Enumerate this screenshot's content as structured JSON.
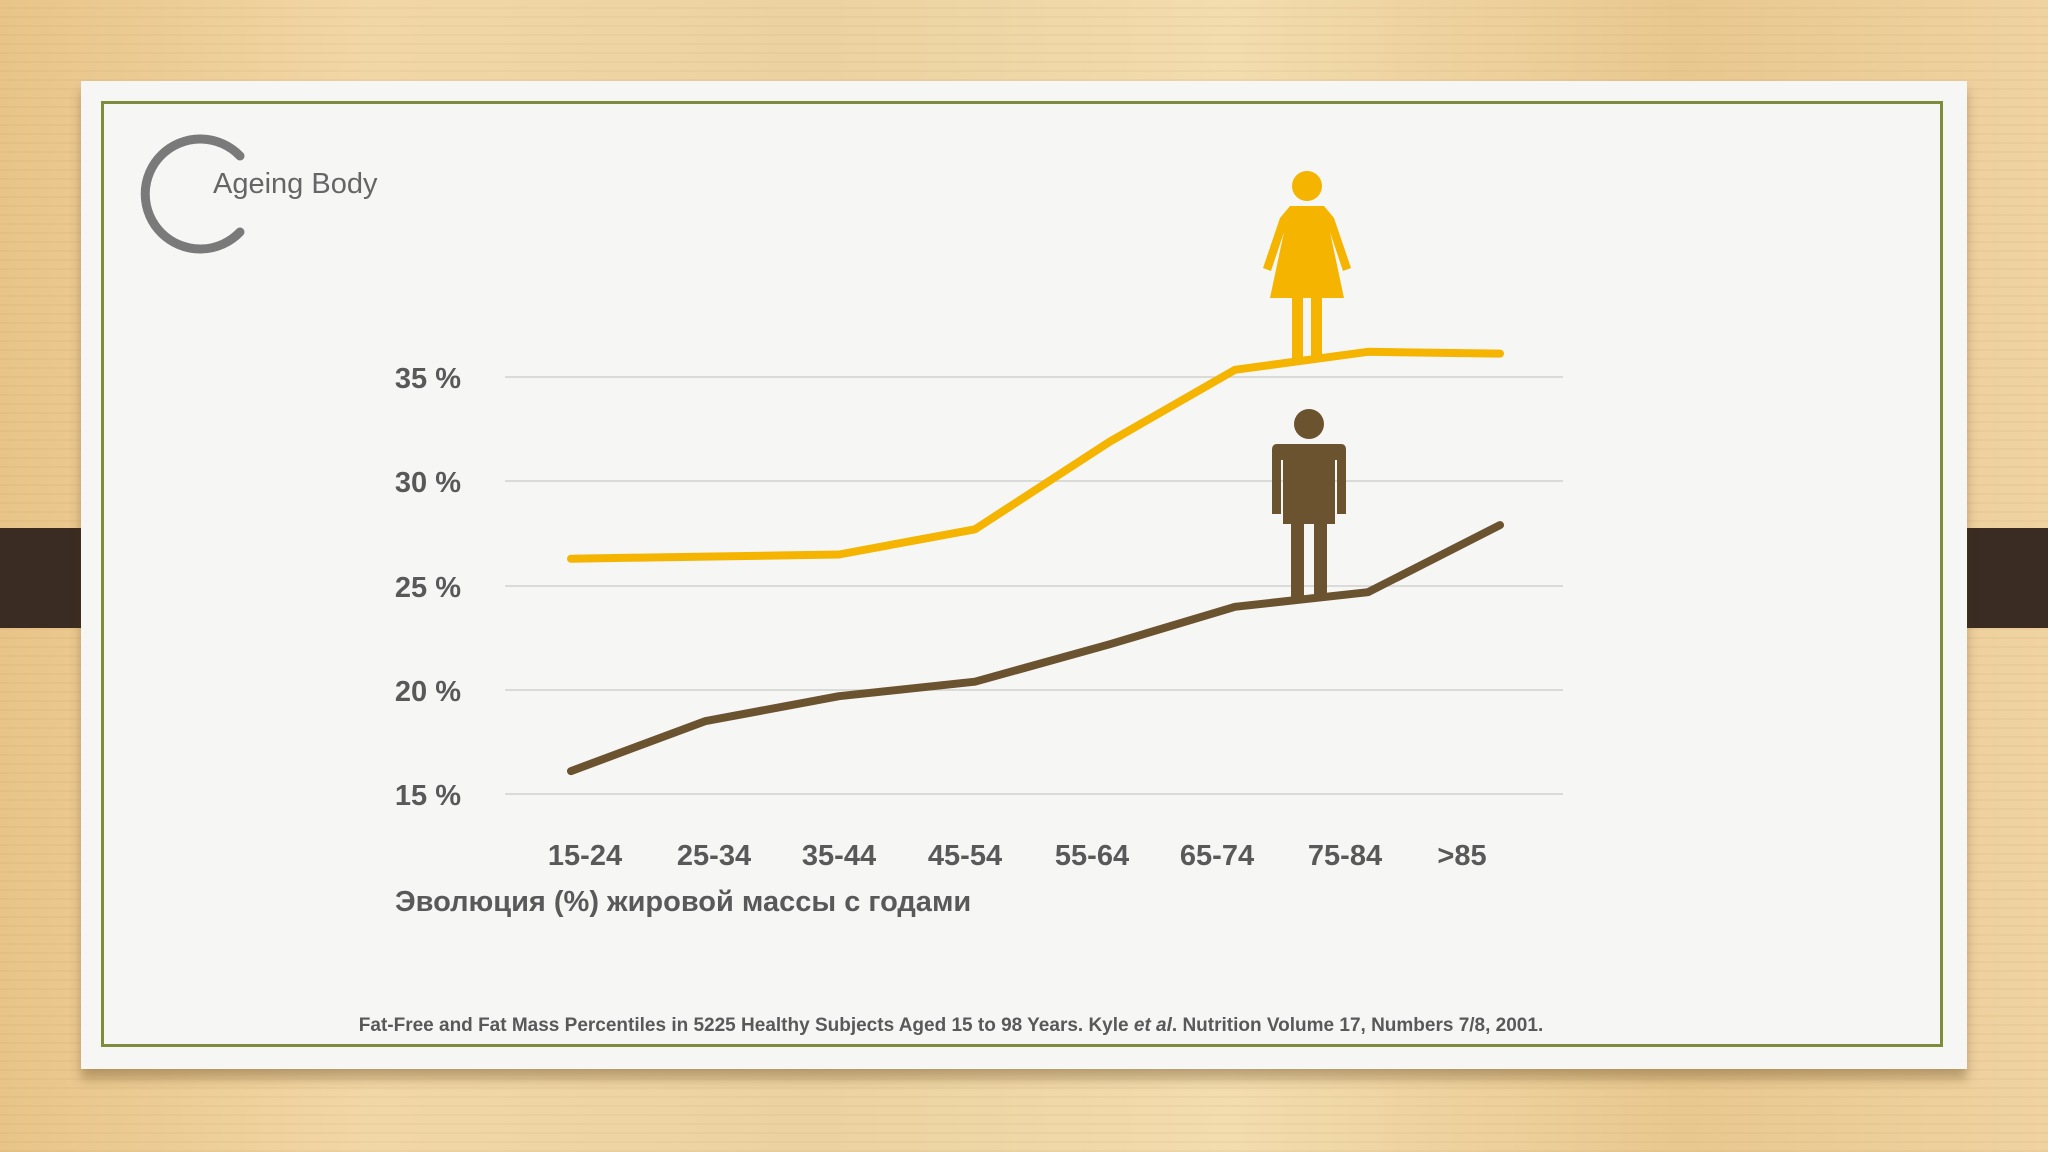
{
  "brand": {
    "title": "Ageing Body",
    "logo_icon": "circle-arc-logo-icon"
  },
  "chart_data": {
    "type": "line",
    "categories": [
      "15-24",
      "25-34",
      "35-44",
      "45-54",
      "55-64",
      "65-74",
      "75-84",
      ">85"
    ],
    "series": [
      {
        "values": [
          26.3,
          26.4,
          26.5,
          27.7,
          31.9,
          35.4,
          36.4,
          36.3
        ],
        "color": "#f4b400",
        "icon": "female-figure-icon"
      },
      {
        "values": [
          16.1,
          18.5,
          19.7,
          20.4,
          22.2,
          24.0,
          24.7,
          27.9
        ],
        "color": "#6b5330",
        "icon": "male-figure-icon"
      }
    ],
    "y_ticks": [
      "15 %",
      "20 %",
      "25 %",
      "30 %",
      "35 %"
    ],
    "ylim": [
      15,
      36.5
    ],
    "grid": true,
    "xlabel": "Эволюция  (%) жировой массы с годами"
  },
  "source": {
    "part1": "Fat-Free and Fat Mass Percentiles in 5225 Healthy Subjects Aged 15 to 98 Years. Kyle ",
    "italic": "et al",
    "part2": ". Nutrition Volume 17, Numbers 7/8, 2001."
  },
  "colors": {
    "frame": "#7f8c3c",
    "tabs": "#3a2c22"
  }
}
